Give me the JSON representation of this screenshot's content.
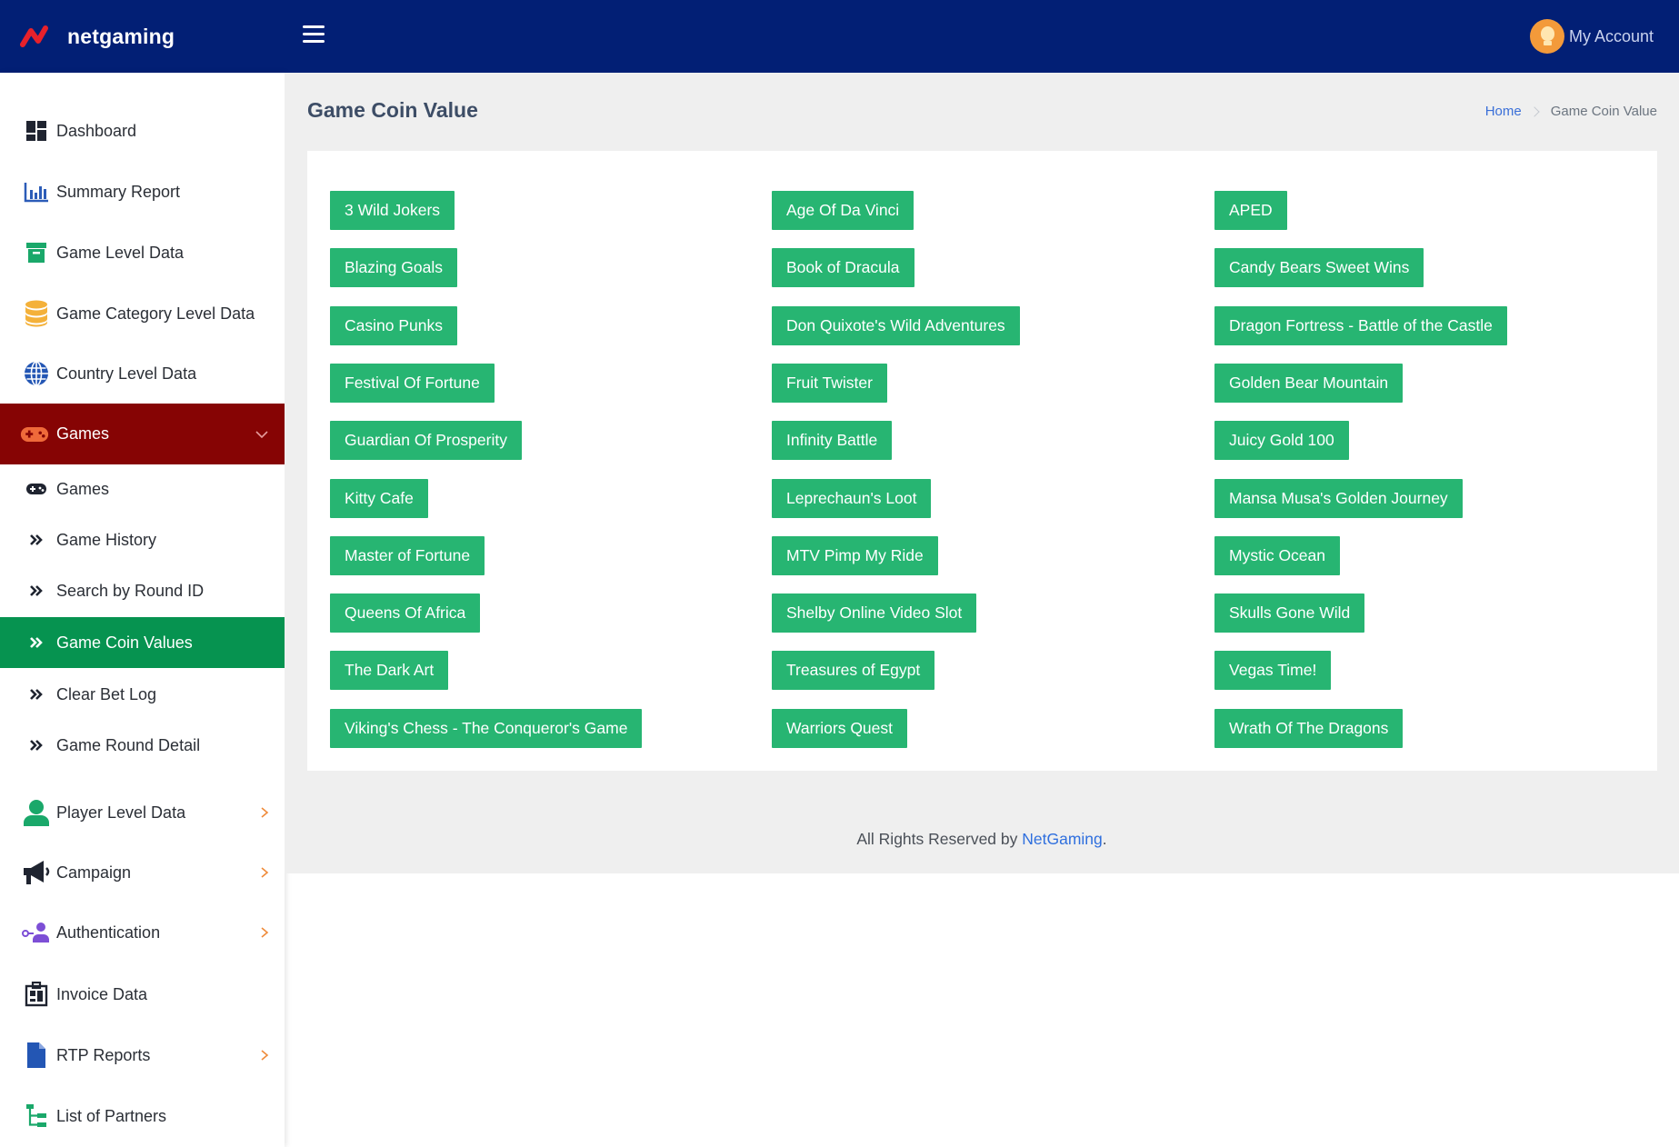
{
  "header": {
    "brand": "netgaming",
    "account_label": "My Account",
    "colors": {
      "bar": "#021f75",
      "logo": "#e8212b"
    }
  },
  "sidebar": {
    "items": [
      {
        "label": "Dashboard",
        "icon": "dashboard-icon"
      },
      {
        "label": "Summary Report",
        "icon": "bar-chart-icon"
      },
      {
        "label": "Game Level Data",
        "icon": "archive-box-icon"
      },
      {
        "label": "Game Category Level Data",
        "icon": "database-icon"
      },
      {
        "label": "Country Level Data",
        "icon": "globe-icon"
      },
      {
        "label": "Games",
        "icon": "gamepad-icon",
        "expanded": true
      },
      {
        "label": "Player Level Data",
        "icon": "user-icon",
        "has_children": true
      },
      {
        "label": "Campaign",
        "icon": "megaphone-icon",
        "has_children": true
      },
      {
        "label": "Authentication",
        "icon": "user-key-icon",
        "has_children": true
      },
      {
        "label": "Invoice Data",
        "icon": "invoice-icon"
      },
      {
        "label": "RTP Reports",
        "icon": "file-icon",
        "has_children": true
      },
      {
        "label": "List of Partners",
        "icon": "sitemap-icon"
      }
    ],
    "games_sub": [
      {
        "label": "Games",
        "icon": "gamepad-icon"
      },
      {
        "label": "Game History",
        "icon": "double-chevron-icon"
      },
      {
        "label": "Search by Round ID",
        "icon": "double-chevron-icon"
      },
      {
        "label": "Game Coin Values",
        "icon": "double-chevron-icon",
        "current": true
      },
      {
        "label": "Clear Bet Log",
        "icon": "double-chevron-icon"
      },
      {
        "label": "Game Round Detail",
        "icon": "double-chevron-icon"
      }
    ],
    "colors": {
      "active_parent": "#860404",
      "current_sub": "#069350"
    }
  },
  "page": {
    "title": "Game Coin Value",
    "breadcrumb": {
      "home": "Home",
      "current": "Game Coin Value"
    }
  },
  "games": [
    "3 Wild Jokers",
    "Age Of Da Vinci",
    "APED",
    "Blazing Goals",
    "Book of Dracula",
    "Candy Bears Sweet Wins",
    "Casino Punks",
    "Don Quixote's Wild Adventures",
    "Dragon Fortress - Battle of the Castle",
    "Festival Of Fortune",
    "Fruit Twister",
    "Golden Bear Mountain",
    "Guardian Of Prosperity",
    "Infinity Battle",
    "Juicy Gold 100",
    "Kitty Cafe",
    "Leprechaun's Loot",
    "Mansa Musa's Golden Journey",
    "Master of Fortune",
    "MTV Pimp My Ride",
    "Mystic Ocean",
    "Queens Of Africa",
    "Shelby Online Video Slot",
    "Skulls Gone Wild",
    "The Dark Art",
    "Treasures of Egypt",
    "Vegas Time!",
    "Viking's Chess - The Conqueror's Game",
    "Warriors Quest",
    "Wrath Of The Dragons"
  ],
  "game_button_color": "#27b572",
  "footer": {
    "prefix": "All Rights Reserved by ",
    "link": "NetGaming",
    "suffix": "."
  }
}
